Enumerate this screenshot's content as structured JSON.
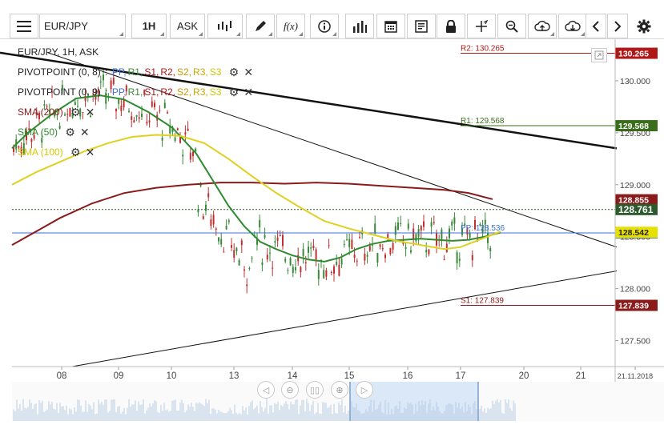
{
  "toolbar": {
    "symbol": "EUR/JPY",
    "timeframe": "1H",
    "price_type": "ASK",
    "buttons": [
      "menu-icon",
      "candles-icon",
      "pencil-icon",
      "fx-icon",
      "info-icon",
      "volume-bars-icon",
      "calendar-icon",
      "report-icon",
      "lock-icon",
      "crosshair-icon",
      "zoom-icon",
      "cloud-upload-icon",
      "cloud-download-icon",
      "chevron-left-icon",
      "chevron-right-icon",
      "gear-icon"
    ],
    "fx_label": "f(x)"
  },
  "legend": {
    "title": "EUR/JPY, 1H, ASK",
    "pivot1": {
      "name": "PIVOTPOINT (0, 8)",
      "sep": ":",
      "items": [
        "PP,",
        "R1,",
        "S1,",
        "R2,",
        "S2,",
        "R3,",
        "S3"
      ]
    },
    "pivot2": {
      "name": "PIVOTPOINT (0, 9)",
      "sep": ":",
      "items": [
        "PP,",
        "R1,",
        "S1,",
        "R2,",
        "S2,",
        "R3,",
        "S3"
      ]
    },
    "sma200": "SMA (200)",
    "sma50": "SMA (50)",
    "sma100": "SMA (100)",
    "colors": {
      "pp": "#3a6fd8",
      "r1": "#3a8a3a",
      "s1": "#b01818",
      "r2": "#b01818",
      "s2": "#c89a00",
      "r3": "#c8a800",
      "s3": "#c8c800",
      "sma200": "#8b1a1a",
      "sma50": "#2e8b2e",
      "sma100": "#e0d020"
    }
  },
  "chart_data": {
    "type": "line",
    "symbol": "EUR/JPY",
    "interval": "1H",
    "ylim": [
      127.25,
      130.4
    ],
    "y_ticks": [
      "130.000",
      "129.500",
      "129.000",
      "128.500",
      "128.000",
      "127.500"
    ],
    "x_ticks": [
      "08",
      "09",
      "10",
      "13",
      "14",
      "15",
      "16",
      "17",
      "20",
      "21",
      "21.11.2018"
    ],
    "pivot_lines": [
      {
        "label": "R2: 130.265",
        "value": 130.265,
        "tag": "130.265",
        "color": "#b01818"
      },
      {
        "label": "R1: 129.568",
        "value": 129.568,
        "tag": "129.568",
        "color": "#3a6e1a"
      },
      {
        "label": "PP: 128.536",
        "value": 128.536,
        "tag": "128.542",
        "color": "#3a6fd8"
      },
      {
        "label": "S1: 127.839",
        "value": 127.839,
        "tag": "127.839",
        "color": "#8b1a1a"
      }
    ],
    "price_tags": [
      {
        "value": 128.855,
        "text": "128.855",
        "color": "#8b1a1a",
        "text_color": "#fff"
      },
      {
        "value": 128.761,
        "text": "128.761",
        "color": "#2d5a2d",
        "text_color": "#fff"
      },
      {
        "value": 128.542,
        "text": "128.542",
        "color": "#e8e000",
        "text_color": "#222"
      }
    ],
    "current_price": 128.761,
    "series": [
      {
        "name": "SMA (200)",
        "color": "#8b1a1a",
        "points": [
          [
            0,
            128.42
          ],
          [
            30,
            128.55
          ],
          [
            60,
            128.68
          ],
          [
            100,
            128.82
          ],
          [
            140,
            128.92
          ],
          [
            180,
            128.97
          ],
          [
            220,
            129.0
          ],
          [
            260,
            129.02
          ],
          [
            300,
            129.02
          ],
          [
            340,
            129.01
          ],
          [
            380,
            129.02
          ],
          [
            420,
            129.01
          ],
          [
            460,
            128.99
          ],
          [
            500,
            128.97
          ],
          [
            540,
            128.95
          ],
          [
            570,
            128.92
          ],
          [
            600,
            128.86
          ]
        ]
      },
      {
        "name": "SMA (50)",
        "color": "#2e8b2e",
        "points": [
          [
            0,
            129.35
          ],
          [
            20,
            129.5
          ],
          [
            50,
            129.68
          ],
          [
            80,
            129.83
          ],
          [
            110,
            129.86
          ],
          [
            140,
            129.82
          ],
          [
            170,
            129.7
          ],
          [
            200,
            129.55
          ],
          [
            230,
            129.3
          ],
          [
            250,
            129.05
          ],
          [
            270,
            128.8
          ],
          [
            290,
            128.6
          ],
          [
            310,
            128.45
          ],
          [
            330,
            128.38
          ],
          [
            350,
            128.32
          ],
          [
            370,
            128.28
          ],
          [
            390,
            128.26
          ],
          [
            410,
            128.3
          ],
          [
            430,
            128.38
          ],
          [
            450,
            128.43
          ],
          [
            470,
            128.46
          ],
          [
            490,
            128.47
          ],
          [
            510,
            128.48
          ],
          [
            530,
            128.47
          ],
          [
            550,
            128.46
          ],
          [
            570,
            128.47
          ],
          [
            590,
            128.5
          ],
          [
            610,
            128.54
          ]
        ]
      },
      {
        "name": "SMA (100)",
        "color": "#e0d020",
        "points": [
          [
            0,
            129.0
          ],
          [
            30,
            129.12
          ],
          [
            60,
            129.22
          ],
          [
            90,
            129.32
          ],
          [
            120,
            129.4
          ],
          [
            150,
            129.46
          ],
          [
            180,
            129.48
          ],
          [
            210,
            129.47
          ],
          [
            240,
            129.4
          ],
          [
            270,
            129.25
          ],
          [
            300,
            129.08
          ],
          [
            330,
            128.92
          ],
          [
            360,
            128.78
          ],
          [
            390,
            128.65
          ],
          [
            420,
            128.58
          ],
          [
            450,
            128.52
          ],
          [
            480,
            128.46
          ],
          [
            510,
            128.42
          ],
          [
            540,
            128.38
          ],
          [
            560,
            128.4
          ],
          [
            580,
            128.46
          ],
          [
            600,
            128.52
          ],
          [
            610,
            128.55
          ]
        ]
      }
    ],
    "trendlines": [
      {
        "name": "upper-thick",
        "from": [
          0,
          130.27
        ],
        "to": [
          770,
          129.35
        ]
      },
      {
        "name": "upper-thin",
        "from": [
          60,
          130.27
        ],
        "to": [
          770,
          128.4
        ]
      },
      {
        "name": "lower",
        "from": [
          90,
          127.25
        ],
        "to": [
          770,
          128.17
        ]
      }
    ]
  }
}
